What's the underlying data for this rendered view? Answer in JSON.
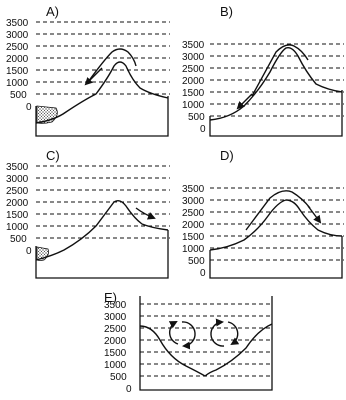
{
  "panels": [
    {
      "label": "A)",
      "ticks": [
        "3500",
        "3000",
        "2500",
        "2000",
        "1500",
        "1000",
        "500",
        "0"
      ],
      "flow_direction": "down-left (windward)",
      "shaded_pool": true
    },
    {
      "label": "B)",
      "ticks": [
        "3500",
        "3000",
        "2500",
        "2000",
        "1500",
        "1000",
        "500",
        "0"
      ],
      "flow_direction": "down-left (windward)",
      "shaded_pool": false
    },
    {
      "label": "C)",
      "ticks": [
        "3500",
        "3000",
        "2500",
        "2000",
        "1500",
        "1000",
        "500",
        "0"
      ],
      "flow_direction": "down-right (leeward)",
      "shaded_pool": true
    },
    {
      "label": "D)",
      "ticks": [
        "3500",
        "3000",
        "2500",
        "2000",
        "1500",
        "1000",
        "500",
        "0"
      ],
      "flow_direction": "down-right (leeward)",
      "shaded_pool": false
    },
    {
      "label": "E)",
      "ticks": [
        "3500",
        "3000",
        "2500",
        "2000",
        "1500",
        "1000",
        "500",
        "0"
      ],
      "flow_direction": "two rotors in valley",
      "shaded_pool": false
    }
  ]
}
